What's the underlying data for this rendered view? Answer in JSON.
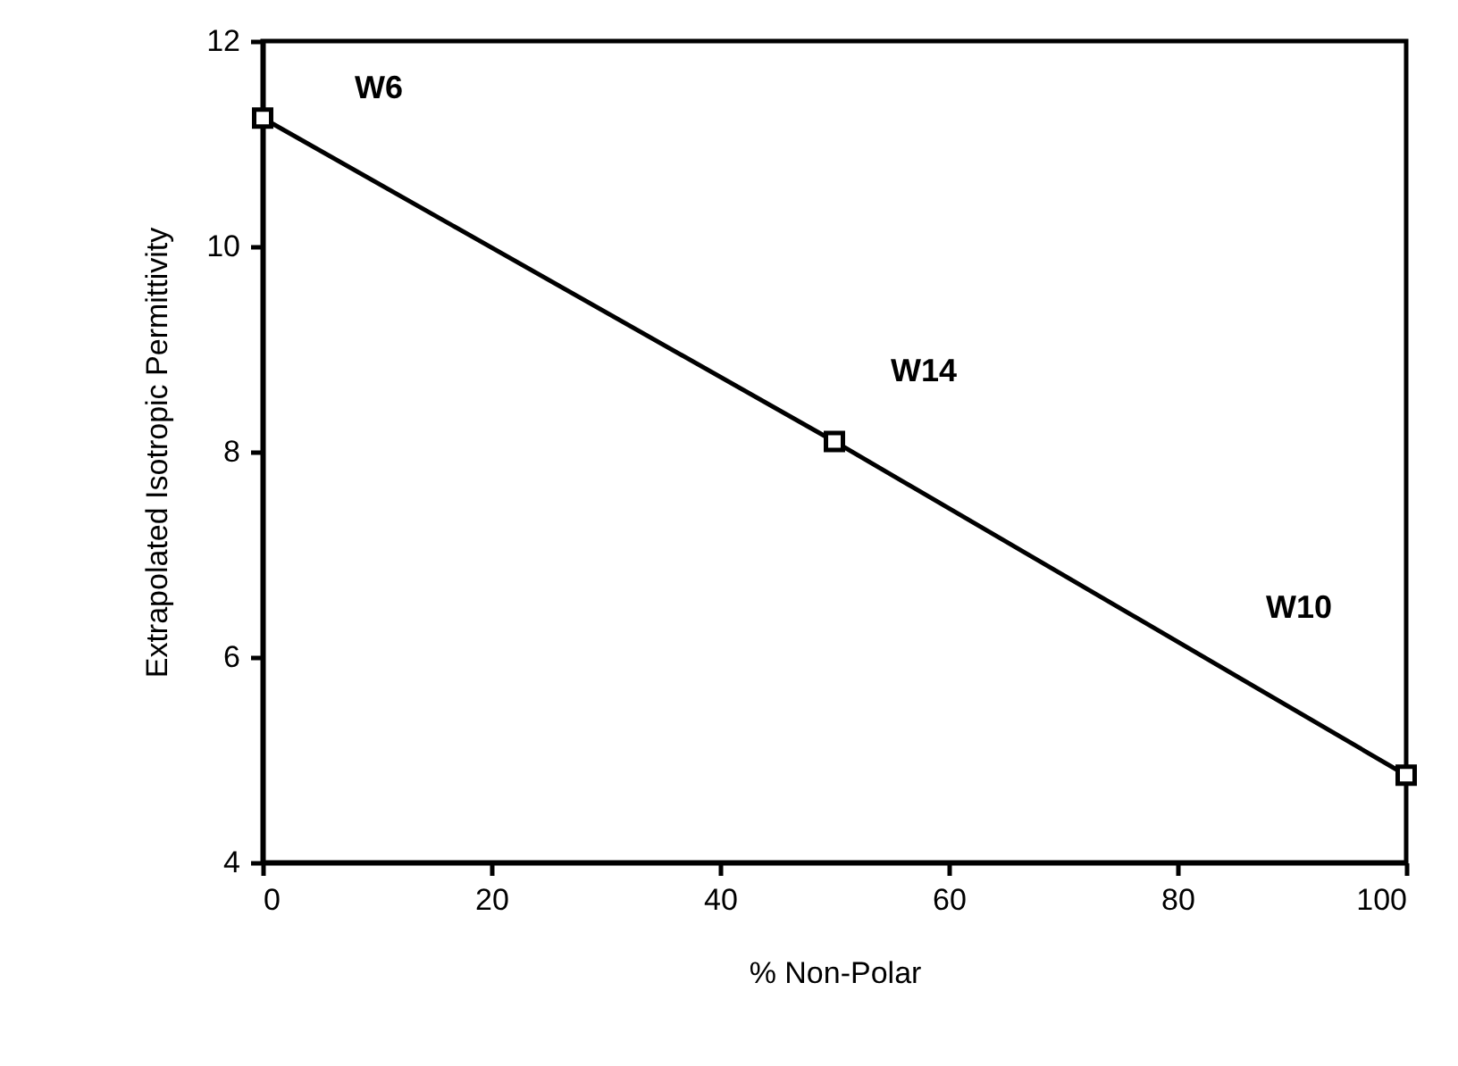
{
  "chart_data": {
    "type": "line",
    "xlabel": "% Non-Polar",
    "ylabel": "Extrapolated Isotropic Permittivity",
    "x": [
      0,
      50,
      100
    ],
    "series": [
      {
        "color": "#000000",
        "values": [
          11.25,
          8.1,
          4.85
        ]
      }
    ],
    "xlim": [
      0,
      100
    ],
    "xticks": [
      0,
      20,
      40,
      60,
      80,
      100
    ],
    "ylim": [
      4,
      12
    ],
    "yticks": [
      4,
      6,
      8,
      10,
      12
    ],
    "marker": "square",
    "line_style": "solid",
    "grid": false,
    "legend": false,
    "annotations": [
      {
        "text": "W6",
        "x": 0,
        "y": 11.25
      },
      {
        "text": "W14",
        "x": 50,
        "y": 8.1
      },
      "W10"
    ]
  }
}
